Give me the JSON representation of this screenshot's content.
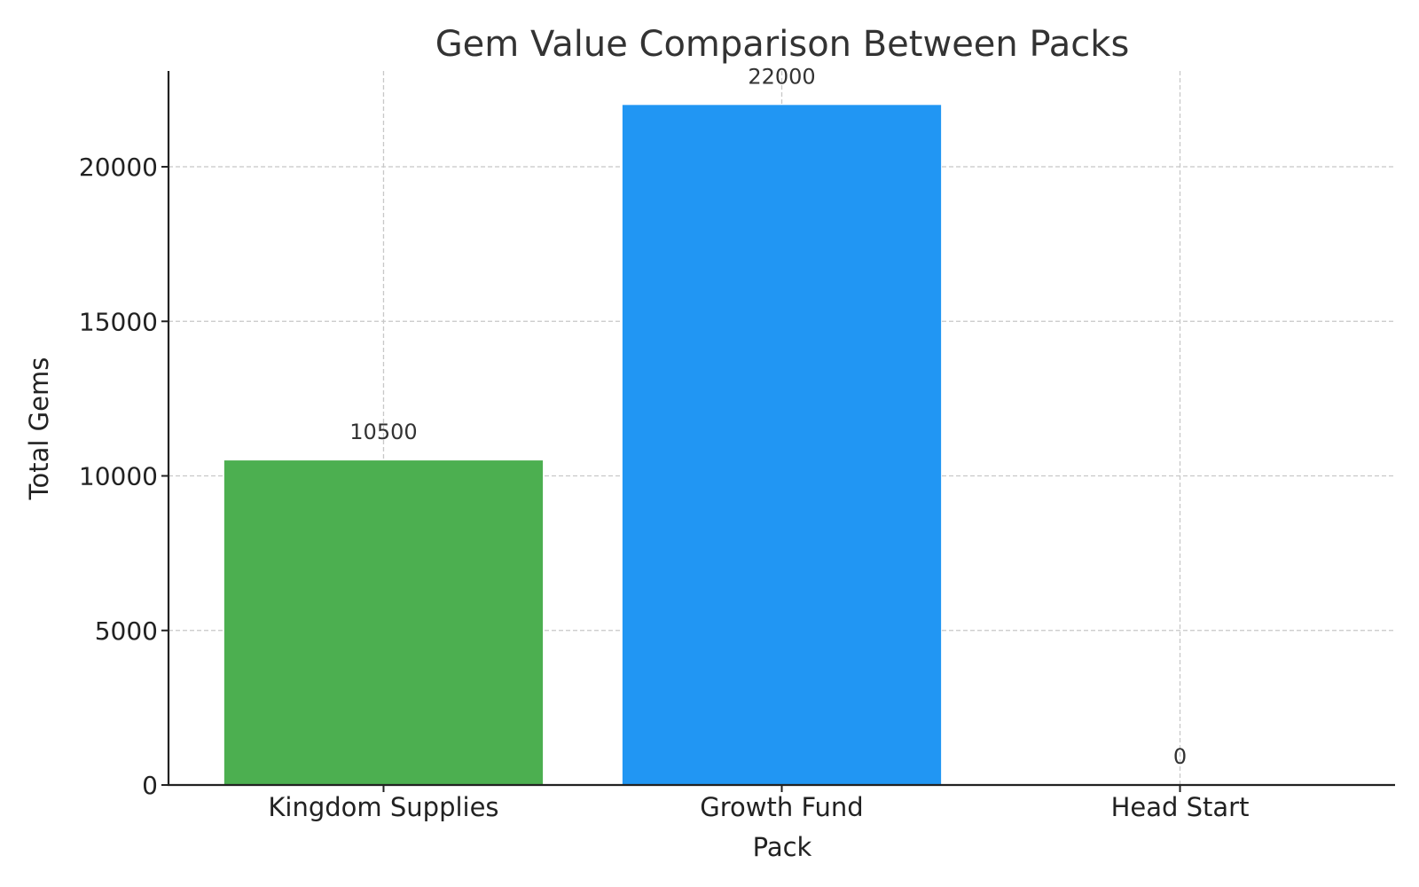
{
  "chart_data": {
    "type": "bar",
    "title": "Gem Value Comparison Between Packs",
    "xlabel": "Pack",
    "ylabel": "Total Gems",
    "categories": [
      "Kingdom Supplies",
      "Growth Fund",
      "Head Start"
    ],
    "values": [
      10500,
      22000,
      0
    ],
    "data_labels": [
      "10500",
      "22000",
      "0"
    ],
    "colors": [
      "#4caf50",
      "#2196f3",
      "#ff9800"
    ],
    "ylim": [
      0,
      23100
    ],
    "yticks": [
      0,
      5000,
      10000,
      15000,
      20000
    ],
    "ytick_labels": [
      "0",
      "5000",
      "10000",
      "15000",
      "20000"
    ],
    "grid": true,
    "grid_style": "dashed"
  }
}
